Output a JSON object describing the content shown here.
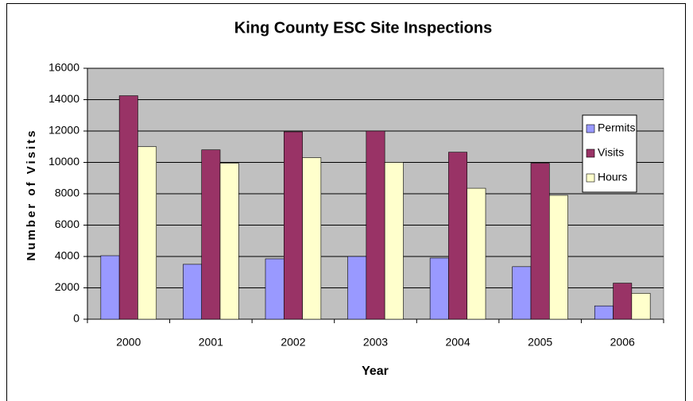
{
  "chart_data": {
    "type": "bar",
    "title": "King County ESC Site Inspections",
    "x_label": "Year",
    "y_label": "Number of Visits",
    "categories": [
      "2000",
      "2001",
      "2002",
      "2003",
      "2004",
      "2005",
      "2006"
    ],
    "series": [
      {
        "name": "Permits",
        "color": "#9999ff",
        "values": [
          4050,
          3500,
          3850,
          4000,
          3900,
          3350,
          850
        ]
      },
      {
        "name": "Visits",
        "color": "#993366",
        "values": [
          14250,
          10800,
          11950,
          12000,
          10650,
          9950,
          2300
        ]
      },
      {
        "name": "Hours",
        "color": "#ffffcc",
        "values": [
          11000,
          9950,
          10300,
          10000,
          8350,
          7900,
          1650
        ]
      }
    ],
    "ylim": [
      0,
      16000
    ],
    "yticks": [
      0,
      2000,
      4000,
      6000,
      8000,
      10000,
      12000,
      14000,
      16000
    ],
    "grid": true,
    "legend_position": "right"
  }
}
